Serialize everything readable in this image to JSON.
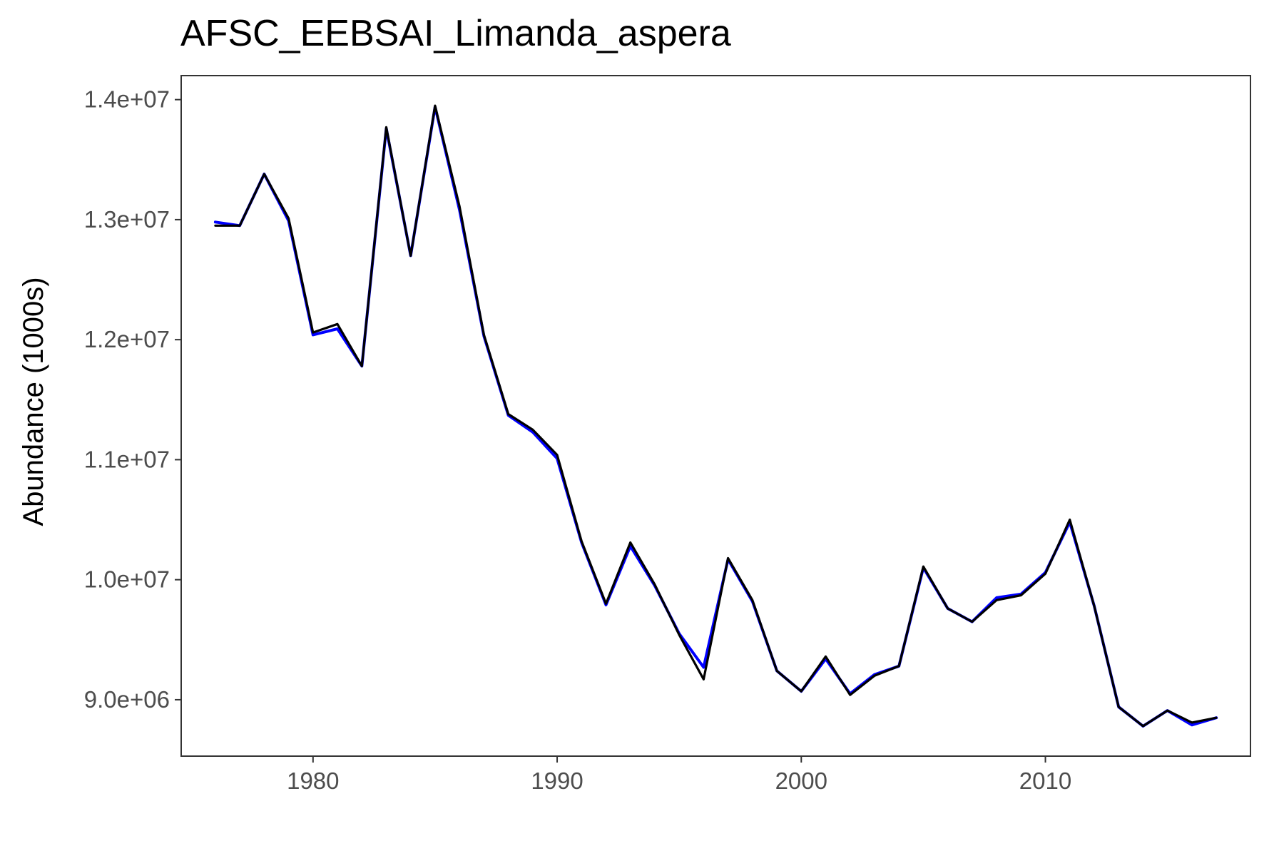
{
  "chart_data": {
    "type": "line",
    "title": "AFSC_EEBSAI_Limanda_aspera",
    "xlabel": "",
    "ylabel": "Abundance (1000s)",
    "xlim": [
      1974.6,
      2018.4
    ],
    "ylim": [
      8530000,
      14200000
    ],
    "x_ticks": [
      1980,
      1990,
      2000,
      2010
    ],
    "x_tick_labels": [
      "1980",
      "1990",
      "2000",
      "2010"
    ],
    "y_ticks": [
      9000000,
      10000000,
      11000000,
      12000000,
      13000000,
      14000000
    ],
    "y_tick_labels": [
      "9.0e+06",
      "1.0e+07",
      "1.1e+07",
      "1.2e+07",
      "1.3e+07",
      "1.4e+07"
    ],
    "grid": false,
    "legend": "none",
    "x": [
      1976,
      1977,
      1978,
      1979,
      1980,
      1981,
      1982,
      1983,
      1984,
      1985,
      1986,
      1987,
      1988,
      1989,
      1990,
      1991,
      1992,
      1993,
      1994,
      1995,
      1996,
      1997,
      1998,
      1999,
      2000,
      2001,
      2002,
      2003,
      2004,
      2005,
      2006,
      2007,
      2008,
      2009,
      2010,
      2011,
      2012,
      2013,
      2014,
      2015,
      2016,
      2017
    ],
    "series": [
      {
        "color": "#0000ff",
        "values": [
          12980000,
          12950000,
          13380000,
          12990000,
          12040000,
          12090000,
          11780000,
          13760000,
          12700000,
          13940000,
          13080000,
          12030000,
          11370000,
          11230000,
          11010000,
          10310000,
          9790000,
          10280000,
          9950000,
          9550000,
          9270000,
          10170000,
          9820000,
          9240000,
          9070000,
          9340000,
          9050000,
          9210000,
          9280000,
          10100000,
          9760000,
          9650000,
          9850000,
          9880000,
          10060000,
          10480000,
          9780000,
          8940000,
          8780000,
          8910000,
          8790000,
          8850000
        ]
      },
      {
        "color": "#000000",
        "values": [
          12950000,
          12950000,
          13380000,
          13010000,
          12060000,
          12130000,
          11780000,
          13770000,
          12700000,
          13950000,
          13110000,
          12040000,
          11380000,
          11250000,
          11040000,
          10320000,
          9800000,
          10310000,
          9960000,
          9540000,
          9170000,
          10180000,
          9830000,
          9240000,
          9070000,
          9360000,
          9040000,
          9200000,
          9280000,
          10110000,
          9760000,
          9650000,
          9830000,
          9870000,
          10050000,
          10500000,
          9780000,
          8940000,
          8780000,
          8910000,
          8810000,
          8850000
        ]
      }
    ]
  }
}
